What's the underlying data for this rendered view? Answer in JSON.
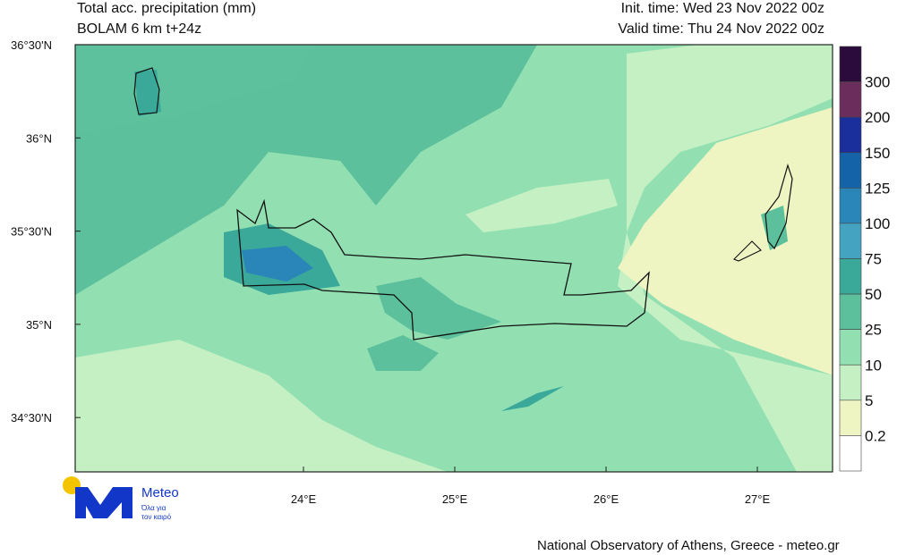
{
  "header": {
    "title": "Total acc. precipitation (mm)",
    "model": "BOLAM 6 km t+24z",
    "init_time": "Init. time: Wed 23 Nov 2022 00z",
    "valid_time": "Valid time: Thu 24 Nov 2022 00z"
  },
  "map": {
    "lat_labels": [
      "36°30'N",
      "36°N",
      "35°30'N",
      "35°N",
      "34°30'N"
    ],
    "lon_labels": [
      "24°E",
      "25°E",
      "26°E",
      "27°E"
    ]
  },
  "colorbar": {
    "colors": [
      "#2b0b3c",
      "#6b2d5c",
      "#1b2f9c",
      "#1463a9",
      "#2a86b9",
      "#45a3c2",
      "#3aa99a",
      "#5cc09c",
      "#92e0b1",
      "#c4f0c4",
      "#eef4c2",
      "#ffffff"
    ],
    "labels": [
      "300",
      "200",
      "150",
      "125",
      "100",
      "75",
      "50",
      "25",
      "10",
      "5",
      "0.2"
    ]
  },
  "logo": {
    "name": "Meteo",
    "tagline_1": "Όλα για",
    "tagline_2": "τον καιρό"
  },
  "footer": "National Observatory of Athens, Greece - meteo.gr"
}
